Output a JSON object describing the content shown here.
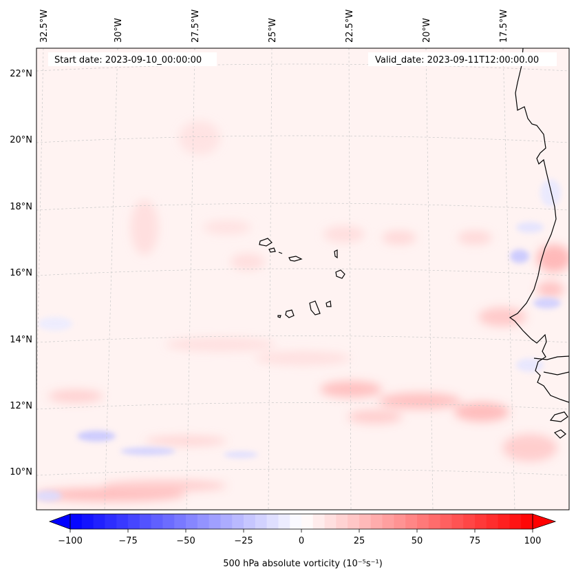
{
  "map": {
    "start_label": "Start date: 2023-09-10_00:00:00",
    "valid_label": "Valid_date: 2023-09-11T12:00:00.00",
    "lon_labels": [
      "32.5°W",
      "30°W",
      "27.5°W",
      "25°W",
      "22.5°W",
      "20°W",
      "17.5°W"
    ],
    "lat_labels": [
      "22°N",
      "20°N",
      "18°N",
      "16°N",
      "14°N",
      "12°N",
      "10°N"
    ],
    "variable": "500 hPa absolute vorticity",
    "units_label": "500 hPa absolute vorticity (10⁻⁵s⁻¹)"
  },
  "colorbar": {
    "min": -100,
    "max": 100,
    "step": 5,
    "tick_values": [
      -100,
      -75,
      -50,
      -25,
      0,
      25,
      50,
      75,
      100
    ],
    "tick_labels": [
      "−100",
      "−75",
      "−50",
      "−25",
      "0",
      "25",
      "50",
      "75",
      "100"
    ],
    "negative_color": "#0000ff",
    "positive_color": "#ff0000",
    "mid_color": "#ffffff"
  },
  "colors": {
    "coastline": "#000000",
    "gridline": "#c8c8c8",
    "frame": "#000000"
  }
}
